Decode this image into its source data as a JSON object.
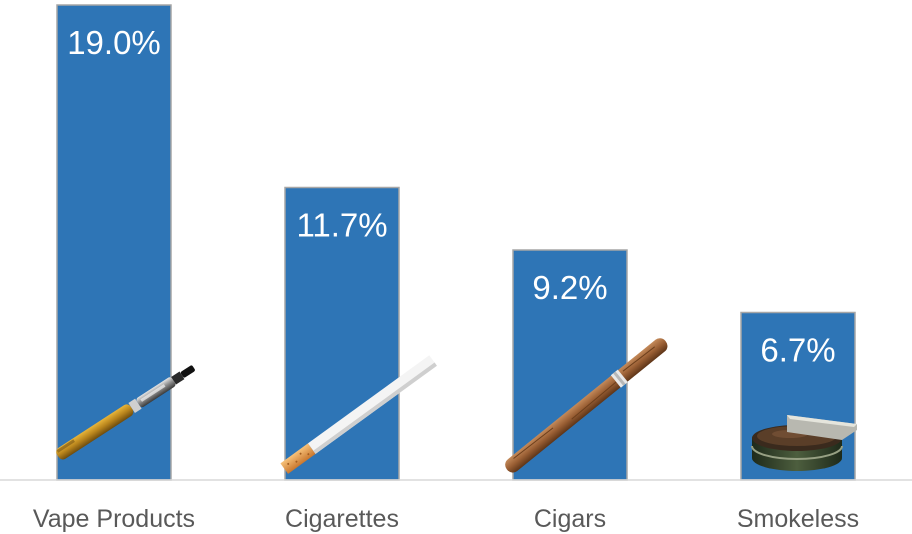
{
  "chart_data": {
    "type": "bar",
    "categories": [
      "Vape Products",
      "Cigarettes",
      "Cigars",
      "Smokeless"
    ],
    "values": [
      19.0,
      11.7,
      9.2,
      6.7
    ],
    "data_labels": [
      "19.0%",
      "11.7%",
      "9.2%",
      "6.7%"
    ],
    "value_unit": "%",
    "ylim": [
      0,
      19.0
    ],
    "grid": false,
    "legend": "none",
    "colors": {
      "bar_fill": "#2e75b6",
      "bar_edge": "#a6a6a6",
      "axis_line": "#d9d9d9",
      "category_text": "#595959",
      "label_text": "#ffffff"
    },
    "bar_images": [
      "vape-pen-image",
      "cigarette-image",
      "cigar-image",
      "snuff-tin-image"
    ]
  }
}
